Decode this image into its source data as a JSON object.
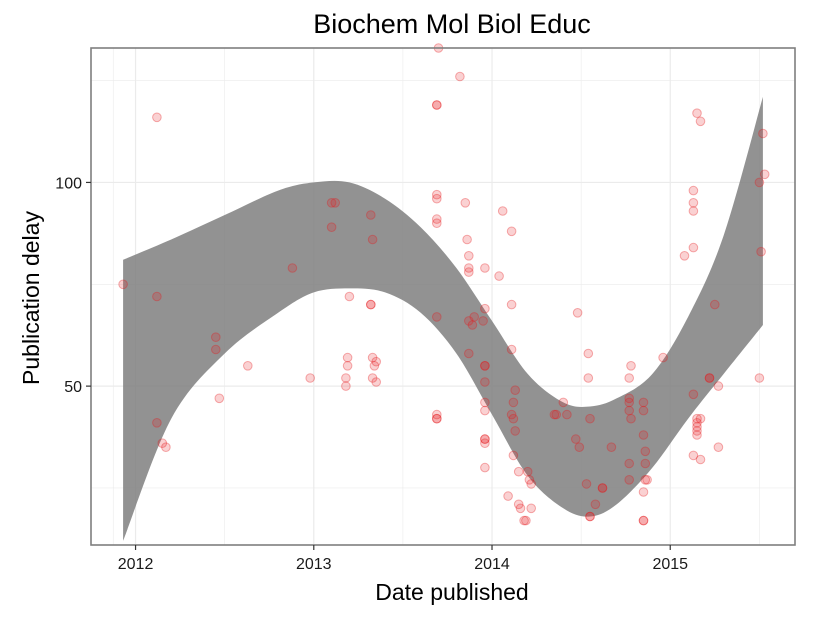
{
  "chart_data": {
    "type": "scatter",
    "title": "Biochem Mol Biol Educ",
    "xlabel": "Date published",
    "ylabel": "Publication delay",
    "xlim": [
      2011.75,
      2015.7
    ],
    "ylim": [
      11,
      133
    ],
    "x_ticks": [
      2012,
      2013,
      2014,
      2015
    ],
    "y_ticks": [
      50,
      100
    ],
    "x_tick_labels": [
      "2012",
      "2013",
      "2014",
      "2015"
    ],
    "y_tick_labels": [
      "50",
      "100"
    ],
    "grid": true,
    "legend": "none",
    "colors": {
      "points": "#e41a1c",
      "band": "#7f7f7f",
      "gridline": "#ebebeb",
      "panel_border": "#7f7f7f"
    },
    "series": [
      {
        "values": [
          [
            2011.93,
            75
          ],
          [
            2012.12,
            116
          ],
          [
            2012.12,
            72
          ],
          [
            2012.12,
            41
          ],
          [
            2012.15,
            36
          ],
          [
            2012.17,
            35
          ],
          [
            2012.45,
            62
          ],
          [
            2012.45,
            59
          ],
          [
            2012.47,
            47
          ],
          [
            2012.63,
            55
          ],
          [
            2012.88,
            79
          ],
          [
            2012.98,
            52
          ],
          [
            2013.1,
            89
          ],
          [
            2013.1,
            95
          ],
          [
            2013.12,
            95
          ],
          [
            2013.2,
            72
          ],
          [
            2013.19,
            57
          ],
          [
            2013.19,
            55
          ],
          [
            2013.18,
            52
          ],
          [
            2013.18,
            50
          ],
          [
            2013.32,
            92
          ],
          [
            2013.32,
            70
          ],
          [
            2013.32,
            70
          ],
          [
            2013.33,
            86
          ],
          [
            2013.33,
            57
          ],
          [
            2013.33,
            52
          ],
          [
            2013.35,
            51
          ],
          [
            2013.34,
            55
          ],
          [
            2013.35,
            56
          ],
          [
            2013.7,
            133
          ],
          [
            2013.69,
            119
          ],
          [
            2013.69,
            119
          ],
          [
            2013.69,
            97
          ],
          [
            2013.69,
            96
          ],
          [
            2013.69,
            91
          ],
          [
            2013.69,
            90
          ],
          [
            2013.69,
            67
          ],
          [
            2013.69,
            43
          ],
          [
            2013.69,
            42
          ],
          [
            2013.69,
            42
          ],
          [
            2013.82,
            126
          ],
          [
            2013.85,
            95
          ],
          [
            2013.86,
            86
          ],
          [
            2013.87,
            82
          ],
          [
            2013.87,
            79
          ],
          [
            2013.87,
            78
          ],
          [
            2013.87,
            66
          ],
          [
            2013.87,
            58
          ],
          [
            2013.89,
            65
          ],
          [
            2013.9,
            67
          ],
          [
            2013.95,
            66
          ],
          [
            2013.96,
            79
          ],
          [
            2013.96,
            69
          ],
          [
            2013.96,
            55
          ],
          [
            2013.96,
            55
          ],
          [
            2013.96,
            51
          ],
          [
            2013.96,
            46
          ],
          [
            2013.96,
            44
          ],
          [
            2013.96,
            37
          ],
          [
            2013.96,
            37
          ],
          [
            2013.96,
            36
          ],
          [
            2013.96,
            30
          ],
          [
            2014.04,
            77
          ],
          [
            2014.06,
            93
          ],
          [
            2014.09,
            23
          ],
          [
            2014.11,
            88
          ],
          [
            2014.11,
            70
          ],
          [
            2014.11,
            59
          ],
          [
            2014.11,
            43
          ],
          [
            2014.12,
            42
          ],
          [
            2014.12,
            33
          ],
          [
            2014.12,
            46
          ],
          [
            2014.13,
            49
          ],
          [
            2014.13,
            39
          ],
          [
            2014.15,
            29
          ],
          [
            2014.15,
            21
          ],
          [
            2014.16,
            20
          ],
          [
            2014.18,
            17
          ],
          [
            2014.19,
            17
          ],
          [
            2014.2,
            29
          ],
          [
            2014.21,
            27
          ],
          [
            2014.22,
            20
          ],
          [
            2014.22,
            26
          ],
          [
            2014.35,
            43
          ],
          [
            2014.36,
            43
          ],
          [
            2014.4,
            46
          ],
          [
            2014.42,
            43
          ],
          [
            2014.47,
            37
          ],
          [
            2014.49,
            35
          ],
          [
            2014.48,
            68
          ],
          [
            2014.54,
            58
          ],
          [
            2014.54,
            52
          ],
          [
            2014.55,
            42
          ],
          [
            2014.53,
            26
          ],
          [
            2014.55,
            18
          ],
          [
            2014.55,
            18
          ],
          [
            2014.58,
            21
          ],
          [
            2014.62,
            25
          ],
          [
            2014.62,
            25
          ],
          [
            2014.67,
            35
          ],
          [
            2014.77,
            52
          ],
          [
            2014.78,
            55
          ],
          [
            2014.77,
            47
          ],
          [
            2014.77,
            46
          ],
          [
            2014.77,
            44
          ],
          [
            2014.78,
            42
          ],
          [
            2014.77,
            31
          ],
          [
            2014.77,
            27
          ],
          [
            2014.85,
            46
          ],
          [
            2014.85,
            44
          ],
          [
            2014.85,
            38
          ],
          [
            2014.86,
            34
          ],
          [
            2014.86,
            31
          ],
          [
            2014.86,
            27
          ],
          [
            2014.87,
            27
          ],
          [
            2014.85,
            24
          ],
          [
            2014.85,
            17
          ],
          [
            2014.85,
            17
          ],
          [
            2014.96,
            57
          ],
          [
            2015.08,
            82
          ],
          [
            2015.13,
            84
          ],
          [
            2015.13,
            98
          ],
          [
            2015.13,
            95
          ],
          [
            2015.13,
            93
          ],
          [
            2015.13,
            48
          ],
          [
            2015.13,
            33
          ],
          [
            2015.15,
            117
          ],
          [
            2015.17,
            115
          ],
          [
            2015.15,
            42
          ],
          [
            2015.15,
            41
          ],
          [
            2015.15,
            40
          ],
          [
            2015.15,
            39
          ],
          [
            2015.15,
            38
          ],
          [
            2015.17,
            42
          ],
          [
            2015.17,
            32
          ],
          [
            2015.22,
            52
          ],
          [
            2015.22,
            52
          ],
          [
            2015.25,
            70
          ],
          [
            2015.27,
            50
          ],
          [
            2015.27,
            35
          ],
          [
            2015.5,
            100
          ],
          [
            2015.51,
            83
          ],
          [
            2015.5,
            52
          ],
          [
            2015.52,
            112
          ],
          [
            2015.53,
            102
          ]
        ]
      }
    ],
    "smooth_band": {
      "x": [
        2011.93,
        2012.2,
        2012.5,
        2012.8,
        2013.0,
        2013.2,
        2013.4,
        2013.6,
        2013.8,
        2014.0,
        2014.2,
        2014.4,
        2014.55,
        2014.7,
        2014.9,
        2015.1,
        2015.3,
        2015.52
      ],
      "lower": [
        12,
        42,
        58,
        68,
        73,
        74,
        73,
        68,
        58,
        43,
        28,
        20,
        18,
        21,
        30,
        42,
        53,
        65
      ],
      "upper": [
        81,
        86,
        92,
        98,
        100,
        100,
        96,
        89,
        79,
        66,
        53,
        46,
        45,
        47,
        53,
        67,
        87,
        121
      ]
    }
  }
}
